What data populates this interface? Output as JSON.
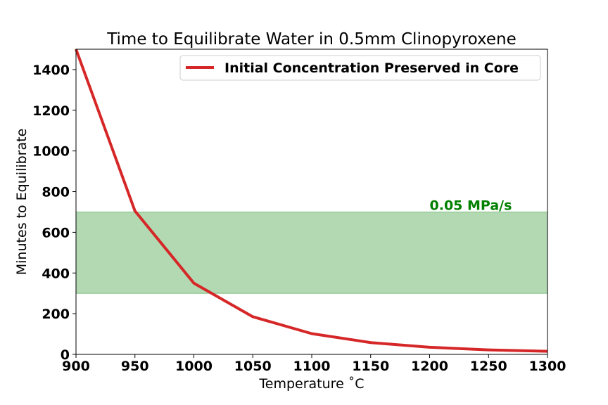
{
  "chart_data": {
    "type": "line",
    "title": "Time to Equilibrate Water in 0.5mm Clinopyroxene",
    "xlabel": "Temperature ˚C",
    "ylabel": "Minutes to Equilibrate",
    "xlim": [
      900,
      1300
    ],
    "ylim": [
      0,
      1500
    ],
    "x_ticks": [
      900,
      950,
      1000,
      1050,
      1100,
      1150,
      1200,
      1250,
      1300
    ],
    "y_ticks": [
      0,
      200,
      400,
      600,
      800,
      1000,
      1200,
      1400
    ],
    "grid": false,
    "legend_placement": "top-right",
    "series": [
      {
        "name": "Initial Concentration Preserved in Core",
        "color": "#d62728",
        "x": [
          900,
          950,
          1000,
          1050,
          1100,
          1150,
          1200,
          1250,
          1300
        ],
        "y": [
          1500,
          705,
          350,
          185,
          102,
          58,
          35,
          22,
          15
        ]
      }
    ],
    "band": {
      "y_range": [
        300,
        700
      ],
      "color": "#008000",
      "label": "0.05 MPa/s",
      "label_x": 1200,
      "label_y": 700
    }
  }
}
